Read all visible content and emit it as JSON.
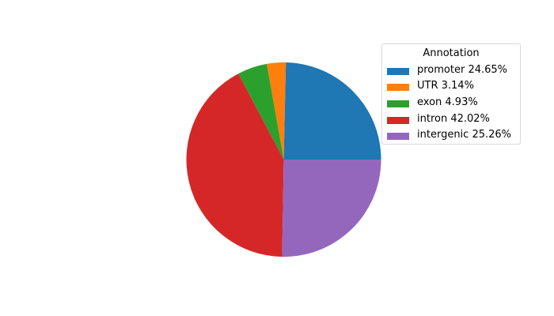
{
  "chart_data": {
    "type": "pie",
    "title": "",
    "legend_title": "Annotation",
    "legend_placement": "upper-right",
    "start_angle_deg": 0,
    "direction": "counterclockwise",
    "slices": [
      {
        "label": "promoter 24.65%",
        "value": 24.65,
        "color": "#1f77b4"
      },
      {
        "label": "UTR 3.14%",
        "value": 3.14,
        "color": "#ff7f0e"
      },
      {
        "label": "exon 4.93%",
        "value": 4.93,
        "color": "#2ca02c"
      },
      {
        "label": "intron 42.02%",
        "value": 42.02,
        "color": "#d62728"
      },
      {
        "label": "intergenic 25.26%",
        "value": 25.26,
        "color": "#9467bd"
      }
    ]
  }
}
